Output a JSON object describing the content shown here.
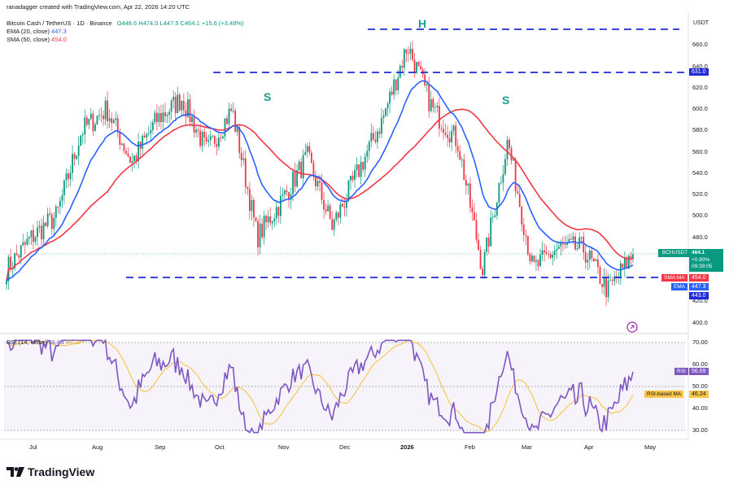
{
  "header": {
    "attribution": "ranadagger created with TradingView.com, Apr 22, 2026 14:20 UTC",
    "symbol": "Bitcoin Cash / TetherUS · 1D · Binance",
    "ohlc": "O448.6 H474.0 L447.5 C464.1 +15.6 (+3.48%)",
    "ema_label": "EMA (20, close)",
    "ema_value": "447.3",
    "sma_label": "SMA (50, close)",
    "sma_value": "454.0",
    "rsi_label": "RSI (14, close)",
    "rsi_value": "56.69",
    "rsi_ma_value": "46.24",
    "currency": "USDT"
  },
  "annotations": {
    "left_shoulder": "S",
    "head": "H",
    "right_shoulder": "S"
  },
  "price_tags": {
    "top_line": "631.0",
    "symbol": "BCHUSDT",
    "last_price": "464.1",
    "change": "+0.80%",
    "countdown": "09:39:05",
    "sma_name": "SMA:MA",
    "sma_price": "454.0",
    "ema_name": "EMA",
    "ema_price": "447.3",
    "neckline": "443.0",
    "rsi_name": "RSI",
    "rsi_value": "56.69",
    "rsi_ma_name": "RSI-based MA",
    "rsi_ma_value": "46.24"
  },
  "price_axis": [
    "660.0",
    "640.0",
    "620.0",
    "600.0",
    "580.0",
    "560.0",
    "540.0",
    "520.0",
    "500.0",
    "480.0",
    "460.0",
    "440.0",
    "420.0",
    "400.0"
  ],
  "rsi_axis": [
    "70.00",
    "60.00",
    "50.00",
    "40.00",
    "30.00"
  ],
  "time_axis": [
    "Jul",
    "Aug",
    "Sep",
    "Oct",
    "Nov",
    "Dec",
    "2026",
    "Feb",
    "Mar",
    "Apr",
    "May"
  ],
  "footer": {
    "brand": "TradingView"
  },
  "colors": {
    "up": "#089981",
    "down": "#f23645",
    "ema": "#2962ff",
    "sma": "#f23645",
    "rsi": "#7e57c2",
    "rsi_ma": "#f7c548",
    "level": "#1e2bd6",
    "annotation": "#1a9e8a"
  },
  "chart_data": {
    "type": "candlestick",
    "title": "Bitcoin Cash / TetherUS · 1D · Binance",
    "x_ticks": [
      "Jul",
      "Aug",
      "Sep",
      "Oct",
      "Nov",
      "Dec",
      "2026",
      "Feb",
      "Mar",
      "Apr",
      "May"
    ],
    "y_range": [
      400,
      665
    ],
    "horizontal_levels": [
      665,
      631.0,
      443.0
    ],
    "pattern": "head and shoulders",
    "price_path": [
      {
        "t": "Jun 20",
        "price": 450
      },
      {
        "t": "Jul 5",
        "price": 480
      },
      {
        "t": "Jul 20",
        "price": 500
      },
      {
        "t": "Aug 5",
        "price": 580
      },
      {
        "t": "Aug 15",
        "price": 600
      },
      {
        "t": "Aug 25",
        "price": 550
      },
      {
        "t": "Sep 5",
        "price": 590
      },
      {
        "t": "Sep 20",
        "price": 610
      },
      {
        "t": "Sep 28",
        "price": 560
      },
      {
        "t": "Oct 5",
        "price": 600
      },
      {
        "t": "Oct 12",
        "price": 480
      },
      {
        "t": "Oct 25",
        "price": 515
      },
      {
        "t": "Nov 5",
        "price": 555
      },
      {
        "t": "Nov 20",
        "price": 490
      },
      {
        "t": "Dec 5",
        "price": 540
      },
      {
        "t": "Dec 20",
        "price": 590
      },
      {
        "t": "Jan 5",
        "price": 660
      },
      {
        "t": "Jan 15",
        "price": 600
      },
      {
        "t": "Jan 28",
        "price": 570
      },
      {
        "t": "Feb 5",
        "price": 450
      },
      {
        "t": "Feb 20",
        "price": 570
      },
      {
        "t": "Mar 1",
        "price": 450
      },
      {
        "t": "Mar 15",
        "price": 470
      },
      {
        "t": "Mar 25",
        "price": 470
      },
      {
        "t": "Apr 10",
        "price": 430
      },
      {
        "t": "Apr 22",
        "price": 464.1
      }
    ],
    "series": [
      {
        "name": "EMA (20, close)",
        "last": 447.3
      },
      {
        "name": "SMA (50, close)",
        "last": 454.0
      },
      {
        "name": "RSI (14, close)",
        "last": 56.69,
        "ylim": [
          27,
          72
        ]
      },
      {
        "name": "RSI-based MA",
        "last": 46.24
      }
    ]
  }
}
